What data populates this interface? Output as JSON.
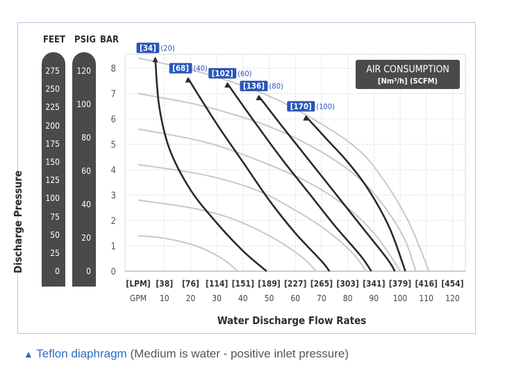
{
  "units": {
    "feet_label": "FEET",
    "psig_label": "PSIG",
    "bar_label": "BAR"
  },
  "y_axis_title": "Discharge Pressure",
  "feet_ticks": [
    "275",
    "250",
    "225",
    "200",
    "175",
    "150",
    "125",
    "100",
    "75",
    "50",
    "25",
    "0"
  ],
  "psig_ticks": [
    "120",
    "100",
    "80",
    "60",
    "40",
    "20",
    "0"
  ],
  "x_axis_title": "Water Discharge Flow Rates",
  "lpm_ticks": [
    "[LPM]",
    "[38]",
    "[76]",
    "[114]",
    "[151]",
    "[189]",
    "[227]",
    "[265]",
    "[303]",
    "[341]",
    "[379]",
    "[416]",
    "[454]"
  ],
  "gpm_ticks": [
    "GPM",
    "10",
    "20",
    "30",
    "40",
    "50",
    "60",
    "70",
    "80",
    "90",
    "100",
    "110",
    "120"
  ],
  "legend": {
    "title": "AIR CONSUMPTION",
    "subtitle": "[Nm³/h] (SCFM)"
  },
  "caption": {
    "triangle": "▲",
    "material": "Teflon diaphragm",
    "note": "(Medium is water -  positive inlet pressure)"
  },
  "colors": {
    "accent": "#2b6cc4",
    "label_box": "#2a56b8",
    "curve": "#2a2a2a",
    "gray_curve": "#c8c8c8",
    "bar": "#4a4a4a"
  },
  "chart_data": {
    "type": "line",
    "xlabel": "Water Discharge Flow Rates",
    "ylabel": "Discharge Pressure",
    "x_unit": "GPM",
    "y_unit": "BAR",
    "xlim": [
      0,
      120
    ],
    "ylim": [
      0,
      8
    ],
    "y_ticks": [
      0,
      1,
      2,
      3,
      4,
      5,
      6,
      7,
      8
    ],
    "grid": true,
    "air_consumption_series": [
      {
        "name": "[34] (20)",
        "bracket": "[34]",
        "paren": "(20)",
        "points": [
          [
            6.5,
            8.4
          ],
          [
            8,
            6.5
          ],
          [
            12,
            4.8
          ],
          [
            20,
            3.2
          ],
          [
            30,
            1.9
          ],
          [
            40,
            0.8
          ],
          [
            49,
            0
          ]
        ]
      },
      {
        "name": "[68] (40)",
        "bracket": "[68]",
        "paren": "(40)",
        "points": [
          [
            19,
            7.6
          ],
          [
            30,
            5.8
          ],
          [
            40,
            4.3
          ],
          [
            50,
            2.8
          ],
          [
            60,
            1.5
          ],
          [
            70,
            0.4
          ],
          [
            73,
            0
          ]
        ]
      },
      {
        "name": "[102] (60)",
        "bracket": "[102]",
        "paren": "(60)",
        "points": [
          [
            34,
            7.4
          ],
          [
            45,
            5.8
          ],
          [
            55,
            4.4
          ],
          [
            65,
            3.1
          ],
          [
            75,
            1.8
          ],
          [
            85,
            0.6
          ],
          [
            89,
            0
          ]
        ]
      },
      {
        "name": "[136] (80)",
        "bracket": "[136]",
        "paren": "(80)",
        "points": [
          [
            46,
            6.9
          ],
          [
            55,
            5.7
          ],
          [
            65,
            4.4
          ],
          [
            75,
            3.1
          ],
          [
            85,
            1.8
          ],
          [
            95,
            0.5
          ],
          [
            98,
            0
          ]
        ]
      },
      {
        "name": "[170] (100)",
        "bracket": "[170]",
        "paren": "(100)",
        "points": [
          [
            64,
            6.1
          ],
          [
            72,
            5.2
          ],
          [
            80,
            4.3
          ],
          [
            88,
            3.2
          ],
          [
            96,
            1.7
          ],
          [
            102,
            0
          ]
        ]
      }
    ],
    "pressure_curves_gray": [
      {
        "points": [
          [
            0,
            8.4
          ],
          [
            25,
            7.8
          ],
          [
            50,
            6.9
          ],
          [
            70,
            5.8
          ],
          [
            85,
            4.7
          ],
          [
            95,
            3.4
          ],
          [
            103,
            2.0
          ],
          [
            108,
            0.8
          ],
          [
            111,
            0
          ]
        ]
      },
      {
        "points": [
          [
            0,
            7.0
          ],
          [
            25,
            6.5
          ],
          [
            50,
            5.7
          ],
          [
            70,
            4.7
          ],
          [
            85,
            3.6
          ],
          [
            95,
            2.4
          ],
          [
            102,
            1.2
          ],
          [
            106,
            0
          ]
        ]
      },
      {
        "points": [
          [
            0,
            5.6
          ],
          [
            25,
            5.1
          ],
          [
            45,
            4.4
          ],
          [
            65,
            3.5
          ],
          [
            80,
            2.5
          ],
          [
            90,
            1.5
          ],
          [
            97,
            0.5
          ],
          [
            100,
            0
          ]
        ]
      },
      {
        "points": [
          [
            0,
            4.2
          ],
          [
            25,
            3.8
          ],
          [
            45,
            3.2
          ],
          [
            60,
            2.4
          ],
          [
            72,
            1.6
          ],
          [
            82,
            0.7
          ],
          [
            87,
            0
          ]
        ]
      },
      {
        "points": [
          [
            0,
            2.8
          ],
          [
            20,
            2.5
          ],
          [
            35,
            2.1
          ],
          [
            50,
            1.4
          ],
          [
            62,
            0.6
          ],
          [
            68,
            0
          ]
        ]
      },
      {
        "points": [
          [
            0,
            1.4
          ],
          [
            10,
            1.3
          ],
          [
            22,
            1.0
          ],
          [
            32,
            0.5
          ],
          [
            38,
            0
          ]
        ]
      }
    ]
  }
}
